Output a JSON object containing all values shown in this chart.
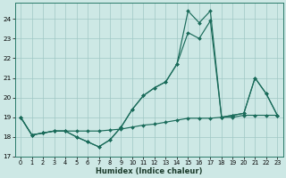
{
  "xlabel": "Humidex (Indice chaleur)",
  "bg_color": "#cde8e5",
  "grid_color": "#a0c8c4",
  "line_color": "#1a6b5a",
  "xlim": [
    -0.5,
    23.5
  ],
  "ylim": [
    17.0,
    24.8
  ],
  "yticks": [
    17,
    18,
    19,
    20,
    21,
    22,
    23,
    24
  ],
  "xticks": [
    0,
    1,
    2,
    3,
    4,
    5,
    6,
    7,
    8,
    9,
    10,
    11,
    12,
    13,
    14,
    15,
    16,
    17,
    18,
    19,
    20,
    21,
    22,
    23
  ],
  "line1_x": [
    0,
    1,
    2,
    3,
    4,
    5,
    6,
    7,
    8,
    9,
    10,
    11,
    12,
    13,
    14,
    15,
    16,
    17,
    18,
    19,
    20,
    21,
    22,
    23
  ],
  "line1_y": [
    19.0,
    18.1,
    18.2,
    18.3,
    18.3,
    18.0,
    17.75,
    17.5,
    17.85,
    18.5,
    19.4,
    20.1,
    20.5,
    20.8,
    21.7,
    23.3,
    23.0,
    23.9,
    19.0,
    19.1,
    19.2,
    21.0,
    20.2,
    19.1
  ],
  "line2_x": [
    0,
    1,
    2,
    3,
    4,
    5,
    6,
    7,
    8,
    9,
    10,
    11,
    12,
    13,
    14,
    15,
    16,
    17,
    18,
    19,
    20,
    21,
    22,
    23
  ],
  "line2_y": [
    19.0,
    18.1,
    18.2,
    18.3,
    18.3,
    18.0,
    17.75,
    17.5,
    17.85,
    18.5,
    19.4,
    20.1,
    20.5,
    20.8,
    21.7,
    24.4,
    23.8,
    24.4,
    19.0,
    19.1,
    19.2,
    21.0,
    20.2,
    19.1
  ],
  "line3_x": [
    0,
    1,
    2,
    3,
    4,
    5,
    6,
    7,
    8,
    9,
    10,
    11,
    12,
    13,
    14,
    15,
    16,
    17,
    18,
    19,
    20,
    21,
    22,
    23
  ],
  "line3_y": [
    19.0,
    18.1,
    18.2,
    18.3,
    18.3,
    18.3,
    18.3,
    18.3,
    18.35,
    18.4,
    18.5,
    18.6,
    18.65,
    18.75,
    18.85,
    18.95,
    18.95,
    18.95,
    19.0,
    19.0,
    19.1,
    19.1,
    19.1,
    19.1
  ]
}
